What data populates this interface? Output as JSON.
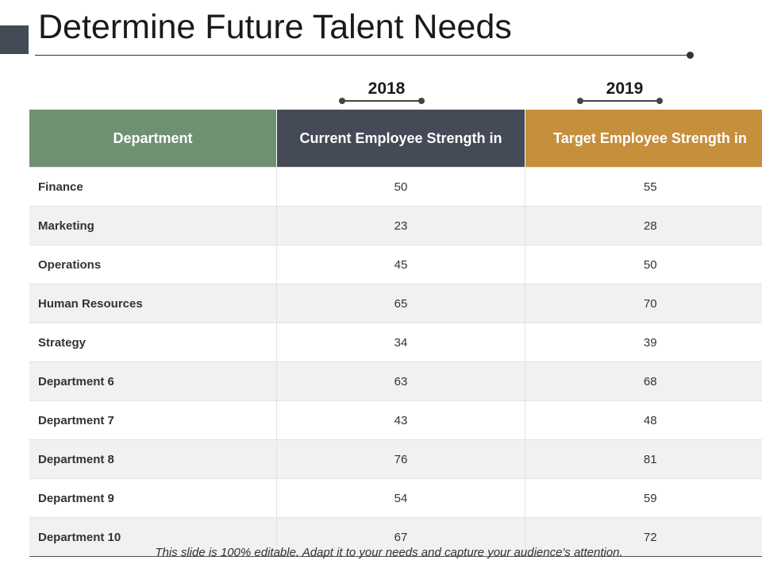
{
  "slide": {
    "title": "Determine Future Talent Needs",
    "footer": "This slide is 100% editable. Adapt it to your needs and capture your audience's attention."
  },
  "years": [
    "2018",
    "2019"
  ],
  "table": {
    "headers": {
      "department": "Department",
      "current": "Current Employee Strength in",
      "target": "Target Employee Strength in"
    },
    "rows": [
      {
        "department": "Finance",
        "current": "50",
        "target": "55"
      },
      {
        "department": "Marketing",
        "current": "23",
        "target": "28"
      },
      {
        "department": "Operations",
        "current": "45",
        "target": "50"
      },
      {
        "department": "Human Resources",
        "current": "65",
        "target": "70"
      },
      {
        "department": "Strategy",
        "current": "34",
        "target": "39"
      },
      {
        "department": "Department 6",
        "current": "63",
        "target": "68"
      },
      {
        "department": "Department 7",
        "current": "43",
        "target": "48"
      },
      {
        "department": "Department 8",
        "current": "76",
        "target": "81"
      },
      {
        "department": "Department 9",
        "current": "54",
        "target": "59"
      },
      {
        "department": "Department 10",
        "current": "67",
        "target": "72"
      }
    ]
  },
  "colors": {
    "department_header": "#6e9172",
    "current_header": "#454a57",
    "target_header": "#c68f3c",
    "accent_block": "#454a57"
  }
}
